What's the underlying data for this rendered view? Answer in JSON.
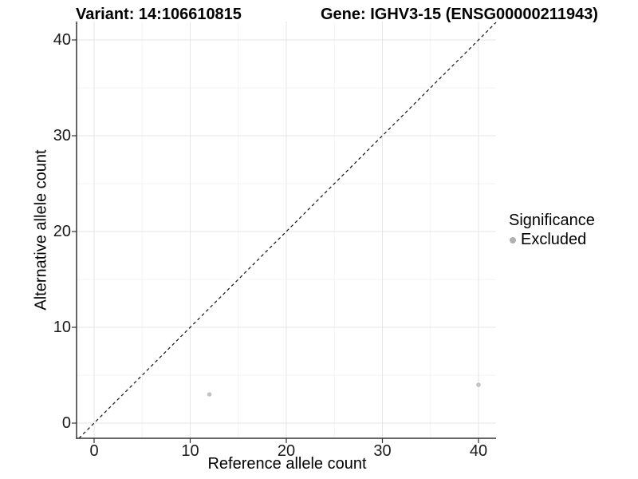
{
  "header": {
    "variant_title": "Variant: 14:106610815",
    "gene_title": "Gene: IGHV3-15 (ENSG00000211943)"
  },
  "chart_data": {
    "type": "scatter",
    "title_left": "Variant: 14:106610815",
    "title_right": "Gene: IGHV3-15 (ENSG00000211943)",
    "xlabel": "Reference allele count",
    "ylabel": "Alternative allele count",
    "xlim": [
      -2,
      42
    ],
    "ylim": [
      -2,
      42
    ],
    "xticks": [
      0,
      10,
      20,
      30,
      40
    ],
    "yticks": [
      0,
      10,
      20,
      30,
      40
    ],
    "minor_ticks_x": [
      5,
      15,
      25,
      35
    ],
    "minor_ticks_y": [
      5,
      15,
      25,
      35
    ],
    "grid": "major+minor, very light gray, no top/right border",
    "series": [
      {
        "name": "Excluded",
        "color": "#c2c2c2",
        "points": [
          {
            "x": 12,
            "y": 3
          },
          {
            "x": 40,
            "y": 4
          }
        ]
      }
    ],
    "reference_line": {
      "kind": "identity y=x",
      "style": "dashed",
      "color": "#111111"
    },
    "colors": {
      "axis_line": "#333333",
      "major_grid": "#e6e6e6",
      "minor_grid": "#f3f3f3",
      "tick_text": "#1a1a1a"
    },
    "legend": {
      "title": "Significance",
      "position": "right",
      "items": [
        {
          "label": "Excluded",
          "color": "#b0b0b0"
        }
      ]
    }
  }
}
